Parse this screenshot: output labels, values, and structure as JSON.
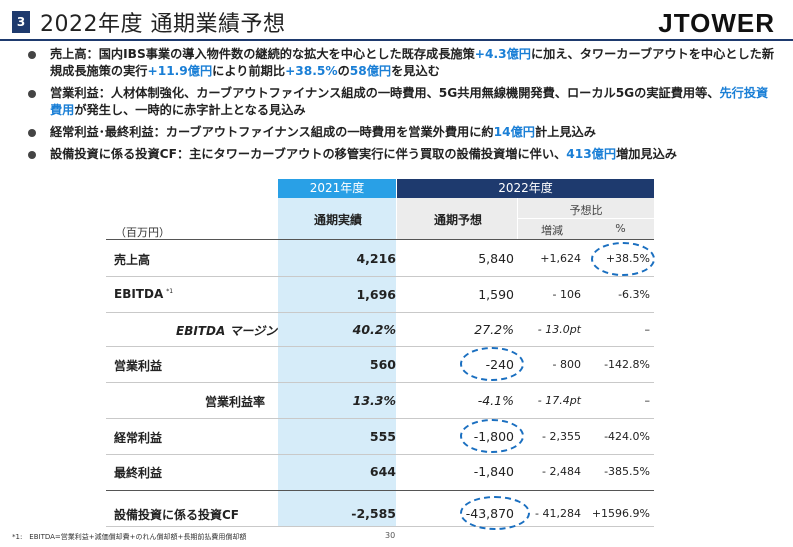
{
  "header": {
    "page_number": "3",
    "title": "2022年度 通期業績予想",
    "logo_text": "JTOWER"
  },
  "bullets": [
    {
      "parts": [
        {
          "t": "売上高：国内IBS事業の導入物件数の継続的な拡大を中心とした既存成長施策"
        },
        {
          "t": "+4.3億円",
          "hl": true
        },
        {
          "t": "に加え、タワーカーブアウトを中心とした新規成長施策の実行"
        },
        {
          "t": "+11.9億円",
          "hl": true
        },
        {
          "t": "により前期比"
        },
        {
          "t": "+38.5%",
          "hl": true
        },
        {
          "t": "の"
        },
        {
          "t": "58億円",
          "hl": true
        },
        {
          "t": "を見込む"
        }
      ]
    },
    {
      "parts": [
        {
          "t": "営業利益：人材体制強化、カーブアウトファイナンス組成の一時費用、5G共用無線機開発費、ローカル5Gの実証費用等、"
        },
        {
          "t": "先行投資費用",
          "hl": true
        },
        {
          "t": "が発生し、一時的に赤字計上となる見込み"
        }
      ]
    },
    {
      "parts": [
        {
          "t": "経常利益･最終利益：カーブアウトファイナンス組成の一時費用を営業外費用に約"
        },
        {
          "t": "14億円",
          "hl": true
        },
        {
          "t": "計上見込み"
        }
      ]
    },
    {
      "parts": [
        {
          "t": "設備投資に係る投資CF：主にタワーカーブアウトの移管実行に伴う買取の設備投資増に伴い、"
        },
        {
          "t": "413億円",
          "hl": true
        },
        {
          "t": "増加見込み"
        }
      ]
    }
  ],
  "table": {
    "unit_label": "（百万円）",
    "year_2021": "2021年度",
    "year_2022": "2022年度",
    "col_actual": "通期実績",
    "col_plan": "通期予想",
    "col_compare": "予想比",
    "col_diff": "増減",
    "col_pct": "%",
    "rows": [
      {
        "label": "売上高",
        "actual": "4,216",
        "plan": "5,840",
        "diff": "+1,624",
        "pct": "+38.5%"
      },
      {
        "label": "EBITDA",
        "label_note": "*1",
        "actual": "1,696",
        "plan": "1,590",
        "diff": "- 106",
        "pct": "-6.3%"
      },
      {
        "label": "EBITDA マージン",
        "actual": "40.2%",
        "plan": "27.2%",
        "diff": "- 13.0pt",
        "pct": "–"
      },
      {
        "label": "営業利益",
        "actual": "560",
        "plan": "-240",
        "diff": "- 800",
        "pct": "-142.8%"
      },
      {
        "label": "営業利益率",
        "actual": "13.3%",
        "plan": "-4.1%",
        "diff": "- 17.4pt",
        "pct": "–"
      },
      {
        "label": "経常利益",
        "actual": "555",
        "plan": "-1,800",
        "diff": "- 2,355",
        "pct": "-424.0%"
      },
      {
        "label": "最終利益",
        "actual": "644",
        "plan": "-1,840",
        "diff": "- 2,484",
        "pct": "-385.5%"
      },
      {
        "label": "設備投資に係る投資CF",
        "actual": "-2,585",
        "plan": "-43,870",
        "diff": "- 41,284",
        "pct": "+1596.9%"
      }
    ]
  },
  "footnote": "*1:　EBITDA=営業利益+減価償却費+のれん償却額+長期前払費用償却額",
  "page_footer": "30",
  "colors": {
    "accent_blue": "#1a7fd6",
    "navy": "#1e3a6e",
    "header_2021": "#29a0e6",
    "column_2021_bg": "#d6ecf9"
  }
}
